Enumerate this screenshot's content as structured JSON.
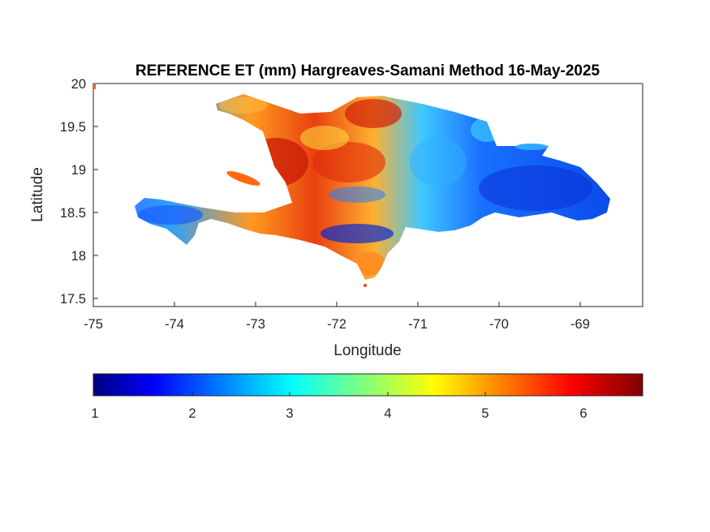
{
  "title": "REFERENCE ET (mm) Hargreaves-Samani Method  16-May-2025",
  "xlabel": "Longitude",
  "ylabel": "Latitude",
  "x_ticks": [
    "-75",
    "-74",
    "-73",
    "-72",
    "-71",
    "-70",
    "-69"
  ],
  "y_ticks": [
    "20",
    "19.5",
    "19",
    "18.5",
    "18",
    "17.5"
  ],
  "colorbar": {
    "colormap": "jet",
    "range": [
      1,
      6.6
    ],
    "ticks": [
      "1",
      "2",
      "3",
      "4",
      "5",
      "6"
    ]
  },
  "map": {
    "region": "Hispaniola",
    "xlim": [
      -75,
      -68.22
    ],
    "ylim": [
      17.4,
      20
    ]
  }
}
